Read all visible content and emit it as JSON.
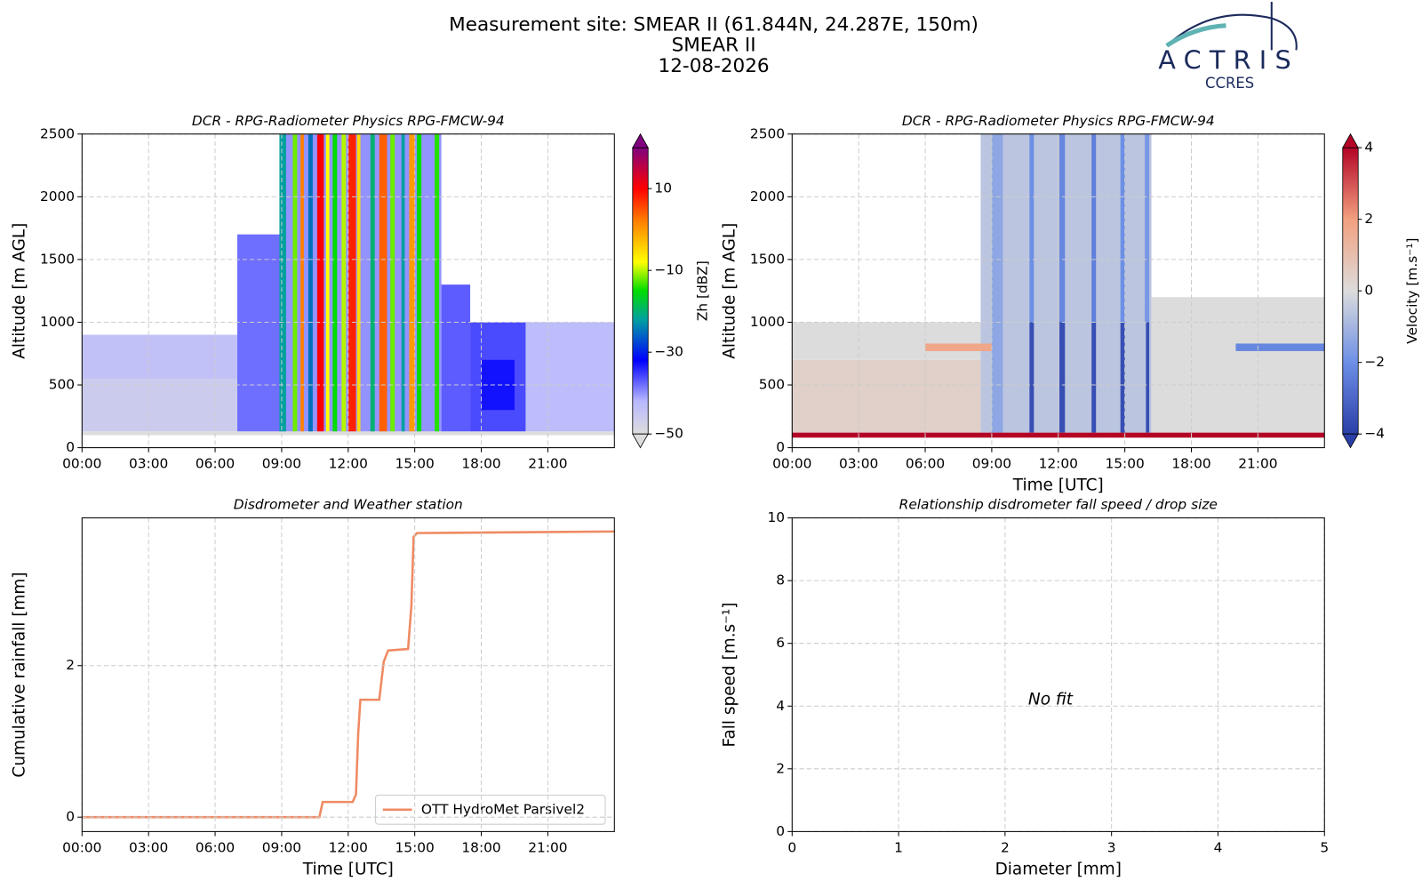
{
  "header": {
    "title": "Measurement site: SMEAR II (61.844N, 24.287E, 150m)",
    "subtitle": "SMEAR II",
    "date": "12-08-2026"
  },
  "logo": {
    "name": "ACTRIS",
    "sub": "CCRES"
  },
  "chart_data": [
    {
      "type": "heatmap",
      "title": "DCR - RPG-Radiometer Physics RPG-FMCW-94",
      "ylabel": "Altitude [m AGL]",
      "xlim": [
        0,
        24
      ],
      "ylim": [
        0,
        2500
      ],
      "grid": true,
      "xticks": [
        {
          "value": 0,
          "label": "00:00"
        },
        {
          "value": 3,
          "label": "03:00"
        },
        {
          "value": 6,
          "label": "06:00"
        },
        {
          "value": 9,
          "label": "09:00"
        },
        {
          "value": 12,
          "label": "12:00"
        },
        {
          "value": 15,
          "label": "15:00"
        },
        {
          "value": 18,
          "label": "18:00"
        },
        {
          "value": 21,
          "label": "21:00"
        }
      ],
      "yticks": [
        0,
        500,
        1000,
        1500,
        2000,
        2500
      ],
      "colorbar": {
        "label": "Zh [dBZ]",
        "clim": [
          -50,
          20
        ],
        "extend": "both",
        "ticks": [
          {
            "value": -50,
            "label": "−50"
          },
          {
            "value": -30,
            "label": "−30"
          },
          {
            "value": -10,
            "label": "−10"
          },
          10
        ],
        "colormap": [
          [
            -50,
            "#dddddd"
          ],
          [
            -42,
            "#b8b8ff"
          ],
          [
            -32,
            "#0000ff"
          ],
          [
            -22,
            "#00a0a0"
          ],
          [
            -15,
            "#00dd00"
          ],
          [
            -8,
            "#ffff00"
          ],
          [
            2,
            "#ff8000"
          ],
          [
            10,
            "#ff0000"
          ],
          [
            20,
            "#800080"
          ]
        ]
      },
      "cells": [
        {
          "x": [
            0,
            24
          ],
          "y": [
            100,
            130
          ],
          "v": -50
        },
        {
          "x": [
            0,
            7
          ],
          "y": [
            130,
            550
          ],
          "v": -46
        },
        {
          "x": [
            0,
            7
          ],
          "y": [
            550,
            900
          ],
          "v": -44
        },
        {
          "x": [
            7,
            9
          ],
          "y": [
            130,
            1700
          ],
          "v": -38
        },
        {
          "x": [
            9,
            16.2
          ],
          "y": [
            130,
            2500
          ],
          "v": -40
        },
        {
          "x": [
            16.2,
            17.5
          ],
          "y": [
            130,
            1300
          ],
          "v": -37
        },
        {
          "x": [
            17.5,
            20
          ],
          "y": [
            130,
            1000
          ],
          "v": -36
        },
        {
          "x": [
            18,
            19.5
          ],
          "y": [
            300,
            700
          ],
          "v": -33
        },
        {
          "x": [
            20,
            24
          ],
          "y": [
            130,
            1000
          ],
          "v": -43
        },
        {
          "x": [
            8.9,
            9.2
          ],
          "y": [
            130,
            2500
          ],
          "v": -22
        },
        {
          "x": [
            9.5,
            9.7
          ],
          "y": [
            130,
            2500
          ],
          "v": -12
        },
        {
          "x": [
            9.85,
            10
          ],
          "y": [
            130,
            2500
          ],
          "v": 2
        },
        {
          "x": [
            10.2,
            10.4
          ],
          "y": [
            130,
            2500
          ],
          "v": -25
        },
        {
          "x": [
            10.6,
            10.9
          ],
          "y": [
            130,
            2500
          ],
          "v": 10
        },
        {
          "x": [
            11,
            11.15
          ],
          "y": [
            130,
            2500
          ],
          "v": -8
        },
        {
          "x": [
            11.3,
            11.5
          ],
          "y": [
            130,
            2500
          ],
          "v": -15
        },
        {
          "x": [
            11.7,
            11.9
          ],
          "y": [
            130,
            2500
          ],
          "v": -10
        },
        {
          "x": [
            12,
            12.35
          ],
          "y": [
            130,
            2500
          ],
          "v": 8
        },
        {
          "x": [
            12.4,
            12.55
          ],
          "y": [
            130,
            2500
          ],
          "v": -5
        },
        {
          "x": [
            13,
            13.2
          ],
          "y": [
            130,
            2500
          ],
          "v": -20
        },
        {
          "x": [
            13.4,
            13.75
          ],
          "y": [
            130,
            2500
          ],
          "v": 4
        },
        {
          "x": [
            13.9,
            14.1
          ],
          "y": [
            130,
            2500
          ],
          "v": -12
        },
        {
          "x": [
            14.4,
            14.55
          ],
          "y": [
            130,
            2500
          ],
          "v": -22
        },
        {
          "x": [
            14.75,
            15
          ],
          "y": [
            130,
            2500
          ],
          "v": 0
        },
        {
          "x": [
            15.1,
            15.3
          ],
          "y": [
            130,
            2500
          ],
          "v": -15
        },
        {
          "x": [
            15.9,
            16.1
          ],
          "y": [
            130,
            2500
          ],
          "v": -14
        }
      ]
    },
    {
      "type": "heatmap",
      "title": "DCR - RPG-Radiometer Physics RPG-FMCW-94",
      "ylabel": "Altitude [m AGL]",
      "xlabel": "Time [UTC]",
      "xlim": [
        0,
        24
      ],
      "ylim": [
        0,
        2500
      ],
      "grid": true,
      "xticks": [
        {
          "value": 0,
          "label": "00:00"
        },
        {
          "value": 3,
          "label": "03:00"
        },
        {
          "value": 6,
          "label": "06:00"
        },
        {
          "value": 9,
          "label": "09:00"
        },
        {
          "value": 12,
          "label": "12:00"
        },
        {
          "value": 15,
          "label": "15:00"
        },
        {
          "value": 18,
          "label": "18:00"
        },
        {
          "value": 21,
          "label": "21:00"
        }
      ],
      "yticks": [
        0,
        500,
        1000,
        1500,
        2000,
        2500
      ],
      "colorbar": {
        "label": "Velocity [m.s⁻¹]",
        "clim": [
          -4,
          4
        ],
        "extend": "both",
        "ticks": [
          {
            "value": -4,
            "label": "−4"
          },
          {
            "value": -2,
            "label": "−2"
          },
          0,
          2,
          4
        ],
        "colormap": [
          [
            -4,
            "#2a3fa8"
          ],
          [
            -2,
            "#6d8fe6"
          ],
          [
            0,
            "#dcdcdc"
          ],
          [
            2,
            "#f2a07f"
          ],
          [
            4,
            "#b40426"
          ]
        ]
      },
      "cells": [
        {
          "x": [
            0,
            8.5
          ],
          "y": [
            120,
            700
          ],
          "v": 0.4
        },
        {
          "x": [
            0,
            8.5
          ],
          "y": [
            700,
            1000
          ],
          "v": 0
        },
        {
          "x": [
            8.5,
            16.2
          ],
          "y": [
            120,
            2500
          ],
          "v": -0.6
        },
        {
          "x": [
            16.2,
            24
          ],
          "y": [
            120,
            1200
          ],
          "v": 0
        },
        {
          "x": [
            6,
            9
          ],
          "y": [
            770,
            830
          ],
          "v": 1.8
        },
        {
          "x": [
            20,
            24
          ],
          "y": [
            770,
            830
          ],
          "v": -2.2
        },
        {
          "x": [
            9,
            9.5
          ],
          "y": [
            120,
            2500
          ],
          "v": -1.4
        },
        {
          "x": [
            10.7,
            10.9
          ],
          "y": [
            1000,
            2500
          ],
          "v": -2
        },
        {
          "x": [
            12.05,
            12.3
          ],
          "y": [
            1000,
            2500
          ],
          "v": -2.2
        },
        {
          "x": [
            13.5,
            13.7
          ],
          "y": [
            1000,
            2500
          ],
          "v": -2.4
        },
        {
          "x": [
            14.8,
            15
          ],
          "y": [
            1000,
            2500
          ],
          "v": -2
        },
        {
          "x": [
            15.9,
            16.1
          ],
          "y": [
            1000,
            2500
          ],
          "v": -1.8
        },
        {
          "x": [
            10.7,
            10.9
          ],
          "y": [
            120,
            1000
          ],
          "v": -3.6
        },
        {
          "x": [
            12.05,
            12.3
          ],
          "y": [
            120,
            1000
          ],
          "v": -3.6
        },
        {
          "x": [
            13.5,
            13.7
          ],
          "y": [
            120,
            1000
          ],
          "v": -3.6
        },
        {
          "x": [
            14.8,
            15
          ],
          "y": [
            120,
            1000
          ],
          "v": -3.6
        },
        {
          "x": [
            15.95,
            16.1
          ],
          "y": [
            120,
            1000
          ],
          "v": -3.6
        },
        {
          "x": [
            0,
            24
          ],
          "y": [
            80,
            120
          ],
          "v": 4
        }
      ]
    },
    {
      "type": "line",
      "title": "Disdrometer and Weather station",
      "ylabel": "Cumulative rainfall [mm]",
      "xlabel": "Time [UTC]",
      "xlim": [
        0,
        24
      ],
      "ylim": [
        -0.19,
        3.95
      ],
      "grid": true,
      "legend": "lower right",
      "xticks": [
        {
          "value": 0,
          "label": "00:00"
        },
        {
          "value": 3,
          "label": "03:00"
        },
        {
          "value": 6,
          "label": "06:00"
        },
        {
          "value": 9,
          "label": "09:00"
        },
        {
          "value": 12,
          "label": "12:00"
        },
        {
          "value": 15,
          "label": "15:00"
        },
        {
          "value": 18,
          "label": "18:00"
        },
        {
          "value": 21,
          "label": "21:00"
        }
      ],
      "yticks": [
        0,
        2
      ],
      "series": [
        {
          "name": "OTT HydroMet Parsivel2",
          "color": "#ef8a62",
          "x": [
            0,
            10.7,
            10.85,
            12.2,
            12.35,
            12.45,
            12.55,
            13.4,
            13.6,
            13.8,
            14.7,
            14.85,
            14.95,
            15.1,
            24
          ],
          "values": [
            0,
            0,
            0.2,
            0.2,
            0.3,
            1.1,
            1.55,
            1.55,
            2.05,
            2.2,
            2.22,
            2.8,
            3.7,
            3.75,
            3.77
          ]
        }
      ]
    },
    {
      "type": "scatter",
      "title": "Relationship disdrometer fall speed / drop size",
      "ylabel": "Fall speed [m.s⁻¹]",
      "xlabel": "Diameter [mm]",
      "xlim": [
        0,
        5
      ],
      "ylim": [
        0,
        10
      ],
      "grid": true,
      "annotation": "No fit",
      "xticks": [
        0,
        1,
        2,
        3,
        4,
        5
      ],
      "yticks": [
        0,
        2,
        4,
        6,
        8,
        10
      ]
    }
  ]
}
